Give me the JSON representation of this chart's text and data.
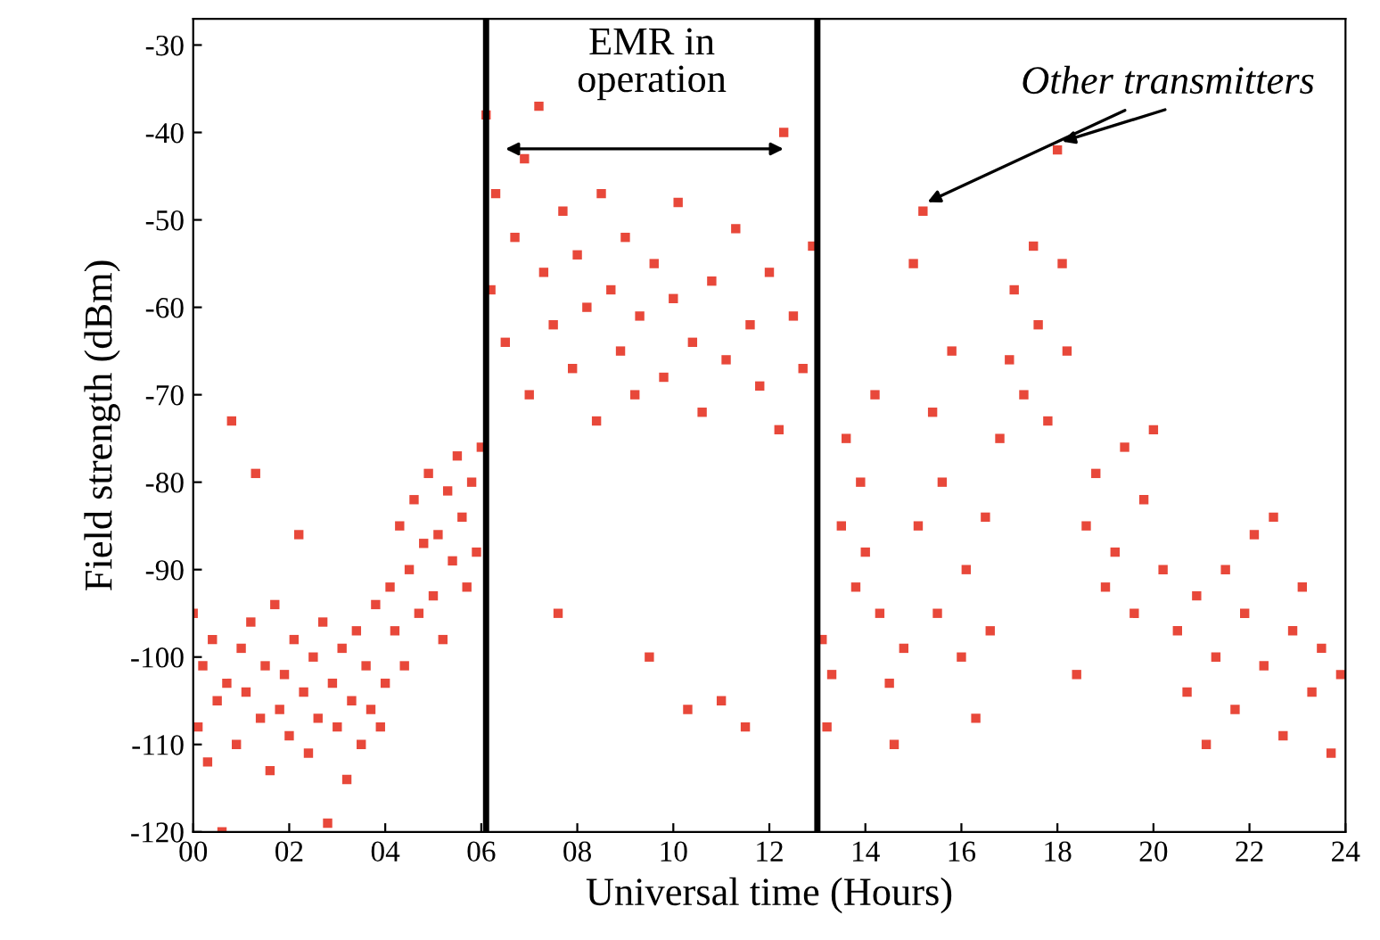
{
  "chart_data": {
    "type": "scatter",
    "xlabel": "Universal time (Hours)",
    "ylabel": "Field strength (dBm)",
    "marker": "square",
    "grid": false,
    "legend": false,
    "xlim": [
      0,
      24
    ],
    "ylim": [
      -120,
      -27
    ],
    "xticks": [
      {
        "value": 0,
        "label": "00"
      },
      {
        "value": 2,
        "label": "02"
      },
      {
        "value": 4,
        "label": "04"
      },
      {
        "value": 6,
        "label": "06"
      },
      {
        "value": 8,
        "label": "08"
      },
      {
        "value": 10,
        "label": "10"
      },
      {
        "value": 12,
        "label": "12"
      },
      {
        "value": 14,
        "label": "14"
      },
      {
        "value": 16,
        "label": "16"
      },
      {
        "value": 18,
        "label": "18"
      },
      {
        "value": 20,
        "label": "20"
      },
      {
        "value": 22,
        "label": "22"
      },
      {
        "value": 24,
        "label": "24"
      }
    ],
    "yticks": [
      -120,
      -110,
      -100,
      -90,
      -80,
      -70,
      -60,
      -50,
      -40,
      -30
    ],
    "ref_lines": [
      {
        "axis": "x",
        "value": 6.1,
        "color": "#000000"
      },
      {
        "axis": "x",
        "value": 13.0,
        "color": "#000000"
      }
    ],
    "annotations": [
      "EMR in\noperation",
      {
        "text": "Other transmitters",
        "x": 15.2,
        "y": -49
      }
    ],
    "series": [
      {
        "color": "#e8483a",
        "x": [
          0.0,
          0.1,
          0.2,
          0.3,
          0.4,
          0.5,
          0.6,
          0.7,
          0.8,
          0.9,
          1.0,
          1.1,
          1.2,
          1.3,
          1.4,
          1.5,
          1.6,
          1.7,
          1.8,
          1.9,
          2.0,
          2.1,
          2.2,
          2.3,
          2.4,
          2.5,
          2.6,
          2.7,
          2.8,
          2.9,
          3.0,
          3.1,
          3.2,
          3.3,
          3.4,
          3.5,
          3.6,
          3.7,
          3.8,
          3.9,
          4.0,
          4.1,
          4.2,
          4.3,
          4.4,
          4.5,
          4.6,
          4.7,
          4.8,
          4.9,
          5.0,
          5.1,
          5.2,
          5.3,
          5.4,
          5.5,
          5.6,
          5.7,
          5.8,
          5.9,
          6.0,
          6.1,
          6.2,
          6.3,
          6.5,
          6.7,
          6.9,
          7.0,
          7.2,
          7.3,
          7.5,
          7.6,
          7.7,
          7.9,
          8.0,
          8.2,
          8.4,
          8.5,
          8.7,
          8.9,
          9.0,
          9.2,
          9.3,
          9.5,
          9.6,
          9.8,
          10.0,
          10.1,
          10.3,
          10.4,
          10.6,
          10.8,
          11.0,
          11.1,
          11.3,
          11.5,
          11.6,
          11.8,
          12.0,
          12.2,
          12.3,
          12.5,
          12.7,
          12.9,
          13.1,
          13.2,
          13.3,
          13.5,
          13.6,
          13.8,
          13.9,
          14.0,
          14.2,
          14.3,
          14.5,
          14.6,
          14.8,
          15.0,
          15.1,
          15.2,
          15.4,
          15.5,
          15.6,
          15.8,
          16.0,
          16.1,
          16.3,
          16.5,
          16.6,
          16.8,
          17.0,
          17.1,
          17.3,
          17.5,
          17.6,
          17.8,
          18.0,
          18.1,
          18.2,
          18.4,
          18.6,
          18.8,
          19.0,
          19.2,
          19.4,
          19.6,
          19.8,
          20.0,
          20.2,
          20.5,
          20.7,
          20.9,
          21.1,
          21.3,
          21.5,
          21.7,
          21.9,
          22.1,
          22.3,
          22.5,
          22.7,
          22.9,
          23.1,
          23.3,
          23.5,
          23.7,
          23.9
        ],
        "values": [
          -95,
          -108,
          -101,
          -112,
          -98,
          -105,
          -120,
          -103,
          -73,
          -110,
          -99,
          -104,
          -96,
          -79,
          -107,
          -101,
          -113,
          -94,
          -106,
          -102,
          -109,
          -98,
          -86,
          -104,
          -111,
          -100,
          -107,
          -96,
          -119,
          -103,
          -108,
          -99,
          -114,
          -105,
          -97,
          -110,
          -101,
          -106,
          -94,
          -108,
          -103,
          -92,
          -97,
          -85,
          -101,
          -90,
          -82,
          -95,
          -87,
          -79,
          -93,
          -86,
          -98,
          -81,
          -89,
          -77,
          -84,
          -92,
          -80,
          -88,
          -76,
          -38,
          -58,
          -47,
          -64,
          -52,
          -43,
          -70,
          -37,
          -56,
          -62,
          -95,
          -49,
          -67,
          -54,
          -60,
          -73,
          -47,
          -58,
          -65,
          -52,
          -70,
          -61,
          -100,
          -55,
          -68,
          -59,
          -48,
          -106,
          -64,
          -72,
          -57,
          -105,
          -66,
          -51,
          -108,
          -62,
          -69,
          -56,
          -74,
          -40,
          -61,
          -67,
          -53,
          -98,
          -108,
          -102,
          -85,
          -75,
          -92,
          -80,
          -88,
          -70,
          -95,
          -103,
          -110,
          -99,
          -55,
          -85,
          -49,
          -72,
          -95,
          -80,
          -65,
          -100,
          -90,
          -107,
          -84,
          -97,
          -75,
          -66,
          -58,
          -70,
          -53,
          -62,
          -73,
          -42,
          -55,
          -65,
          -102,
          -85,
          -79,
          -92,
          -88,
          -76,
          -95,
          -82,
          -74,
          -90,
          -97,
          -104,
          -93,
          -110,
          -100,
          -90,
          -106,
          -95,
          -86,
          -101,
          -84,
          -109,
          -97,
          -92,
          -104,
          -99,
          -111,
          -102
        ]
      }
    ]
  }
}
